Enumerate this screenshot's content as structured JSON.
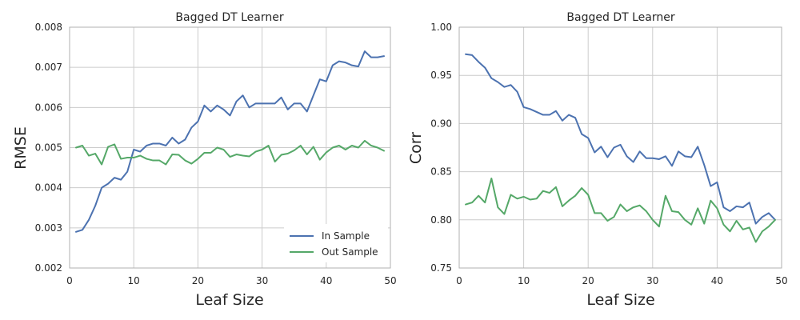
{
  "colors": {
    "in_sample": "#4c72b0",
    "out_sample": "#55a868",
    "grid": "#cccccc"
  },
  "chart_data": [
    {
      "type": "line",
      "title": "Bagged DT Learner",
      "xlabel": "Leaf Size",
      "ylabel": "RMSE",
      "xlim": [
        0,
        50
      ],
      "ylim": [
        0.002,
        0.008
      ],
      "xticks": [
        0,
        10,
        20,
        30,
        40,
        50
      ],
      "yticks": [
        0.002,
        0.003,
        0.004,
        0.005,
        0.006,
        0.007,
        0.008
      ],
      "ytick_decimals": 3,
      "grid": true,
      "legend": "lower-right",
      "x": [
        1,
        2,
        3,
        4,
        5,
        6,
        7,
        8,
        9,
        10,
        11,
        12,
        13,
        14,
        15,
        16,
        17,
        18,
        19,
        20,
        21,
        22,
        23,
        24,
        25,
        26,
        27,
        28,
        29,
        30,
        31,
        32,
        33,
        34,
        35,
        36,
        37,
        38,
        39,
        40,
        41,
        42,
        43,
        44,
        45,
        46,
        47,
        48,
        49
      ],
      "series": [
        {
          "name": "In Sample",
          "values": [
            0.0029,
            0.00295,
            0.0032,
            0.00355,
            0.004,
            0.0041,
            0.00425,
            0.0042,
            0.0044,
            0.00495,
            0.0049,
            0.00505,
            0.0051,
            0.0051,
            0.00505,
            0.00525,
            0.0051,
            0.0052,
            0.0055,
            0.00565,
            0.00605,
            0.0059,
            0.00605,
            0.00595,
            0.0058,
            0.00615,
            0.0063,
            0.006,
            0.0061,
            0.0061,
            0.0061,
            0.0061,
            0.00625,
            0.00595,
            0.0061,
            0.0061,
            0.0059,
            0.0063,
            0.0067,
            0.00665,
            0.00705,
            0.00715,
            0.00712,
            0.00705,
            0.00702,
            0.0074,
            0.00725,
            0.00725,
            0.00728
          ]
        },
        {
          "name": "Out Sample",
          "values": [
            0.005,
            0.00505,
            0.0048,
            0.00485,
            0.00458,
            0.00502,
            0.00508,
            0.00472,
            0.00475,
            0.00475,
            0.0048,
            0.00472,
            0.00468,
            0.00468,
            0.00458,
            0.00483,
            0.00482,
            0.00468,
            0.0046,
            0.00472,
            0.00487,
            0.00487,
            0.005,
            0.00495,
            0.00477,
            0.00483,
            0.0048,
            0.00478,
            0.0049,
            0.00495,
            0.00505,
            0.00465,
            0.00482,
            0.00485,
            0.00493,
            0.00505,
            0.00483,
            0.00502,
            0.0047,
            0.00488,
            0.005,
            0.00505,
            0.00495,
            0.00505,
            0.005,
            0.00517,
            0.00505,
            0.005,
            0.00492
          ]
        }
      ]
    },
    {
      "type": "line",
      "title": "Bagged DT Learner",
      "xlabel": "Leaf Size",
      "ylabel": "Corr",
      "xlim": [
        0,
        50
      ],
      "ylim": [
        0.75,
        1.0
      ],
      "xticks": [
        0,
        10,
        20,
        30,
        40,
        50
      ],
      "yticks": [
        0.75,
        0.8,
        0.85,
        0.9,
        0.95,
        1.0
      ],
      "ytick_decimals": 2,
      "grid": true,
      "legend": "none",
      "x": [
        1,
        2,
        3,
        4,
        5,
        6,
        7,
        8,
        9,
        10,
        11,
        12,
        13,
        14,
        15,
        16,
        17,
        18,
        19,
        20,
        21,
        22,
        23,
        24,
        25,
        26,
        27,
        28,
        29,
        30,
        31,
        32,
        33,
        34,
        35,
        36,
        37,
        38,
        39,
        40,
        41,
        42,
        43,
        44,
        45,
        46,
        47,
        48,
        49
      ],
      "series": [
        {
          "name": "In Sample",
          "values": [
            0.972,
            0.971,
            0.964,
            0.958,
            0.947,
            0.943,
            0.938,
            0.94,
            0.933,
            0.917,
            0.915,
            0.912,
            0.909,
            0.909,
            0.913,
            0.903,
            0.909,
            0.906,
            0.889,
            0.885,
            0.87,
            0.876,
            0.865,
            0.875,
            0.878,
            0.866,
            0.86,
            0.871,
            0.864,
            0.864,
            0.863,
            0.866,
            0.856,
            0.871,
            0.866,
            0.865,
            0.876,
            0.857,
            0.835,
            0.839,
            0.813,
            0.809,
            0.814,
            0.813,
            0.818,
            0.796,
            0.803,
            0.807,
            0.8
          ]
        },
        {
          "name": "Out Sample",
          "values": [
            0.816,
            0.818,
            0.825,
            0.818,
            0.843,
            0.813,
            0.806,
            0.826,
            0.822,
            0.824,
            0.821,
            0.822,
            0.83,
            0.828,
            0.834,
            0.814,
            0.82,
            0.825,
            0.833,
            0.826,
            0.807,
            0.807,
            0.799,
            0.803,
            0.816,
            0.809,
            0.813,
            0.815,
            0.809,
            0.8,
            0.793,
            0.825,
            0.809,
            0.808,
            0.8,
            0.795,
            0.812,
            0.796,
            0.82,
            0.812,
            0.795,
            0.788,
            0.799,
            0.79,
            0.792,
            0.777,
            0.788,
            0.793,
            0.8
          ]
        }
      ]
    }
  ]
}
